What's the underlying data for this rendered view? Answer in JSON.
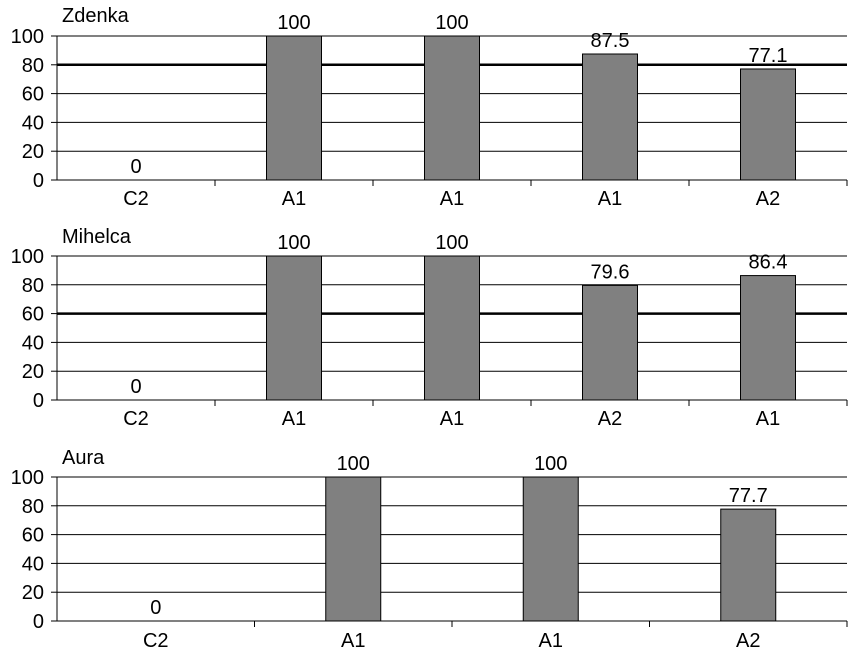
{
  "chart_data": [
    {
      "type": "bar",
      "title": "Zdenka",
      "categories": [
        "C2",
        "A1",
        "A1",
        "A1",
        "A2"
      ],
      "values": [
        0,
        100,
        100,
        87.5,
        77.1
      ],
      "value_labels": [
        "0",
        "100",
        "100",
        "87.5",
        "77.1"
      ],
      "ylim": [
        0,
        100
      ],
      "yticks": [
        "0",
        "20",
        "40",
        "60",
        "80",
        "100"
      ],
      "threshold": 80,
      "xlabel": "",
      "ylabel": "",
      "grid": true,
      "legend": "none"
    },
    {
      "type": "bar",
      "title": "Mihelca",
      "categories": [
        "C2",
        "A1",
        "A1",
        "A2",
        "A1"
      ],
      "values": [
        0,
        100,
        100,
        79.6,
        86.4
      ],
      "value_labels": [
        "0",
        "100",
        "100",
        "79.6",
        "86.4"
      ],
      "ylim": [
        0,
        100
      ],
      "yticks": [
        "0",
        "20",
        "40",
        "60",
        "80",
        "100"
      ],
      "threshold": 60,
      "xlabel": "",
      "ylabel": "",
      "grid": true,
      "legend": "none"
    },
    {
      "type": "bar",
      "title": "Aura",
      "categories": [
        "C2",
        "A1",
        "A1",
        "A2"
      ],
      "values": [
        0,
        100,
        100,
        77.7
      ],
      "value_labels": [
        "0",
        "100",
        "100",
        "77.7"
      ],
      "ylim": [
        0,
        100
      ],
      "yticks": [
        "0",
        "20",
        "40",
        "60",
        "80",
        "100"
      ],
      "threshold": null,
      "xlabel": "",
      "ylabel": "",
      "grid": true,
      "legend": "none"
    }
  ],
  "colors": {
    "bar_fill": "#808080",
    "bar_stroke": "#000000",
    "grid": "#000000",
    "axis": "#000000",
    "text": "#000000",
    "background": "#ffffff"
  }
}
